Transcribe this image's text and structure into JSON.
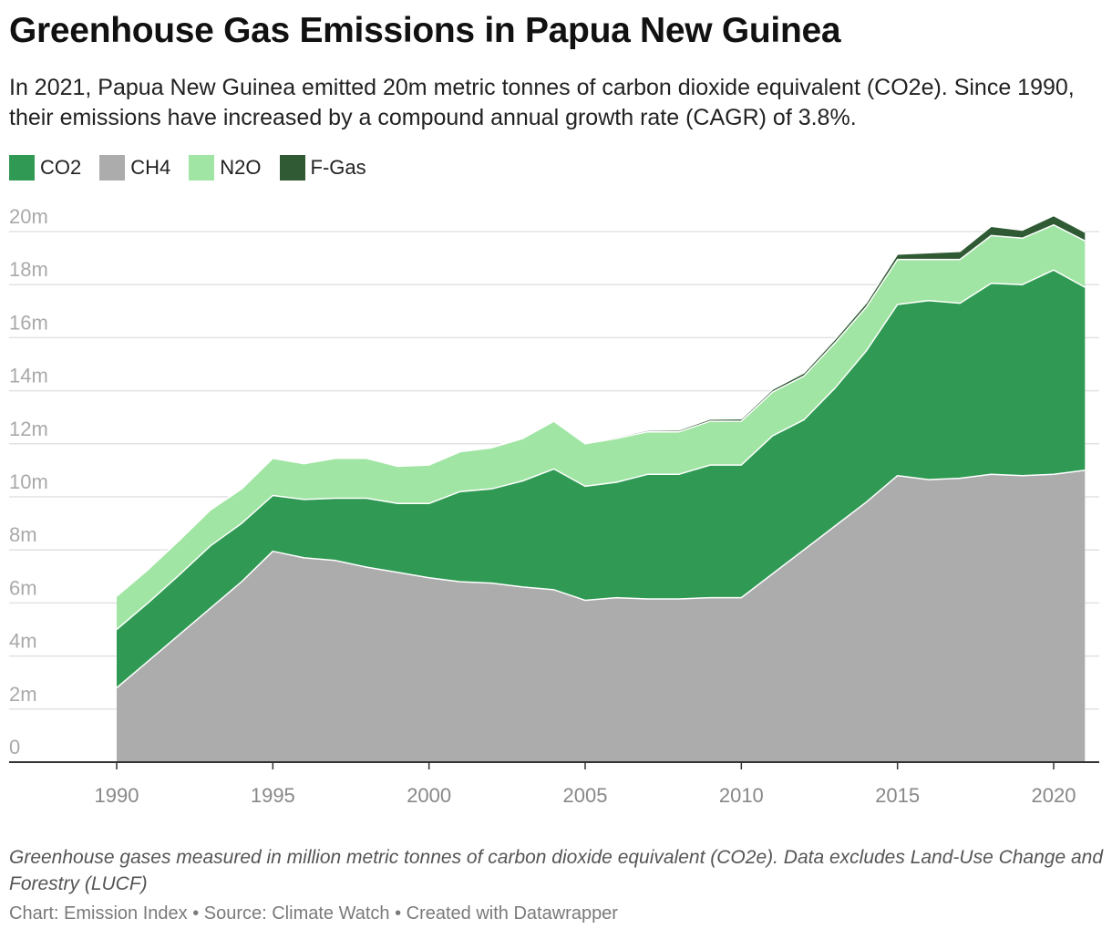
{
  "title": "Greenhouse Gas Emissions in Papua New Guinea",
  "subtitle": "In 2021, Papua New Guinea emitted 20m metric tonnes of carbon dioxide equivalent (CO2e). Since 1990, their emissions have increased by a compound annual growth rate (CAGR) of 3.8%.",
  "footer": {
    "note": "Greenhouse gases measured in million metric tonnes of carbon dioxide equivalent (CO2e). Data excludes Land-Use Change and Forestry (LUCF)",
    "credit": "Chart: Emission Index • Source: Climate Watch • Created with Datawrapper"
  },
  "chart_data": {
    "type": "area",
    "stacked": true,
    "x": [
      1990,
      1991,
      1992,
      1993,
      1994,
      1995,
      1996,
      1997,
      1998,
      1999,
      2000,
      2001,
      2002,
      2003,
      2004,
      2005,
      2006,
      2007,
      2008,
      2009,
      2010,
      2011,
      2012,
      2013,
      2014,
      2015,
      2016,
      2017,
      2018,
      2019,
      2020,
      2021
    ],
    "ylim": [
      0,
      21
    ],
    "yticks": [
      0,
      2,
      4,
      6,
      8,
      10,
      12,
      14,
      16,
      18,
      20
    ],
    "ytick_labels": [
      "0",
      "2m",
      "4m",
      "6m",
      "8m",
      "10m",
      "12m",
      "14m",
      "16m",
      "18m",
      "20m"
    ],
    "xticks": [
      1990,
      1995,
      2000,
      2005,
      2010,
      2015,
      2020
    ],
    "xtick_labels": [
      "1990",
      "1995",
      "2000",
      "2005",
      "2010",
      "2015",
      "2020"
    ],
    "grid": true,
    "legend_position": "top-left",
    "series": [
      {
        "name": "CH4",
        "color": "#acacac",
        "values": [
          2.8,
          3.8,
          4.8,
          5.8,
          6.8,
          7.95,
          7.7,
          7.6,
          7.35,
          7.15,
          6.95,
          6.8,
          6.75,
          6.6,
          6.5,
          6.1,
          6.2,
          6.15,
          6.15,
          6.2,
          6.2,
          7.1,
          8.0,
          8.9,
          9.8,
          10.8,
          10.65,
          10.7,
          10.85,
          10.8,
          10.85,
          11.0
        ]
      },
      {
        "name": "CO2",
        "color": "#309a54",
        "values": [
          2.2,
          2.2,
          2.25,
          2.35,
          2.2,
          2.1,
          2.2,
          2.35,
          2.6,
          2.6,
          2.8,
          3.4,
          3.55,
          4.0,
          4.55,
          4.3,
          4.35,
          4.7,
          4.7,
          5.0,
          5.0,
          5.2,
          4.9,
          5.2,
          5.7,
          6.45,
          6.75,
          6.6,
          7.2,
          7.2,
          7.7,
          6.9
        ]
      },
      {
        "name": "N2O",
        "color": "#a0e5a3",
        "values": [
          1.25,
          1.25,
          1.3,
          1.35,
          1.3,
          1.4,
          1.35,
          1.5,
          1.5,
          1.4,
          1.45,
          1.5,
          1.55,
          1.6,
          1.8,
          1.6,
          1.65,
          1.6,
          1.6,
          1.65,
          1.65,
          1.65,
          1.65,
          1.7,
          1.65,
          1.7,
          1.55,
          1.65,
          1.8,
          1.75,
          1.7,
          1.75
        ]
      },
      {
        "name": "F-Gas",
        "color": "#2f5a33",
        "values": [
          0.02,
          0.02,
          0.02,
          0.02,
          0.02,
          0.02,
          0.02,
          0.02,
          0.02,
          0.02,
          0.02,
          0.03,
          0.03,
          0.03,
          0.04,
          0.04,
          0.05,
          0.06,
          0.07,
          0.08,
          0.09,
          0.1,
          0.12,
          0.14,
          0.16,
          0.2,
          0.25,
          0.3,
          0.35,
          0.3,
          0.35,
          0.33
        ]
      }
    ]
  }
}
